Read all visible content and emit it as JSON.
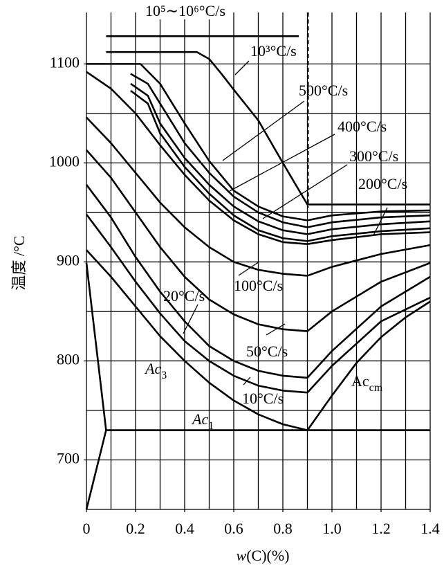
{
  "chart_data": {
    "type": "line",
    "x_label": "w(C)(%)",
    "y_label": "温度 /°C",
    "xlim": [
      0,
      1.4
    ],
    "ylim": [
      650,
      1152
    ],
    "xticks": [
      0,
      0.2,
      0.4,
      0.6,
      0.8,
      {
        "value": 1,
        "label": "1.0"
      },
      1.2,
      1.4
    ],
    "yticks": [
      700,
      800,
      900,
      1000,
      1100
    ],
    "x_gridlines": [
      0.1,
      0.2,
      0.3,
      0.4,
      0.5,
      0.6,
      0.7,
      0.8,
      0.9,
      1,
      1.1,
      1.2,
      1.3,
      1.4
    ],
    "y_gridlines": [
      700,
      750,
      800,
      850,
      900,
      950,
      1000,
      1050,
      1100
    ],
    "grid": true,
    "color": "#000000",
    "series": [
      {
        "name": "10⁵∼10⁶°C/s",
        "x": [
          0.08,
          0.865
        ],
        "values": [
          1128,
          1128
        ]
      },
      {
        "name": "10³°C/s",
        "x": [
          0.08,
          0.45,
          0.5,
          0.55,
          0.6,
          0.7,
          0.8,
          0.9,
          1.4
        ],
        "values": [
          1112,
          1112,
          1105,
          1090,
          1074,
          1043,
          1000,
          958,
          958
        ]
      },
      {
        "name": "500°C/s",
        "x": [
          0,
          0.22,
          0.3,
          0.4,
          0.5,
          0.6,
          0.7,
          0.8,
          0.9,
          1,
          1.2,
          1.4
        ],
        "values": [
          1100,
          1100,
          1080,
          1040,
          1002,
          972,
          956,
          946,
          942,
          947,
          951,
          952
        ]
      },
      {
        "name": "400°C/s",
        "x": [
          0.18,
          0.25,
          0.3,
          0.4,
          0.5,
          0.6,
          0.7,
          0.8,
          0.9,
          1,
          1.2,
          1.4
        ],
        "values": [
          1090,
          1080,
          1060,
          1020,
          990,
          966,
          950,
          940,
          935,
          940,
          945,
          947
        ]
      },
      {
        "name": "300°C/s",
        "x": [
          0.18,
          0.25,
          0.3,
          0.4,
          0.5,
          0.6,
          0.7,
          0.8,
          0.9,
          1,
          1.2,
          1.4
        ],
        "values": [
          1080,
          1068,
          1040,
          1005,
          978,
          956,
          941,
          932,
          928,
          933,
          938,
          941
        ]
      },
      {
        "name": "200°C/s",
        "x": [
          0.18,
          0.25,
          0.3,
          0.4,
          0.5,
          0.6,
          0.7,
          0.8,
          0.9,
          1,
          1.2,
          1.4
        ],
        "values": [
          1073,
          1060,
          1030,
          996,
          969,
          947,
          932,
          924,
          921,
          926,
          931,
          934
        ]
      },
      {
        "x": [
          0,
          0.1,
          0.2,
          0.3,
          0.4,
          0.5,
          0.6,
          0.7,
          0.8,
          0.9,
          1,
          1.2,
          1.4
        ],
        "values": [
          1092,
          1075,
          1050,
          1018,
          988,
          962,
          942,
          928,
          920,
          918,
          922,
          928,
          930
        ]
      },
      {
        "name": "100°C/s",
        "x": [
          0,
          0.1,
          0.2,
          0.3,
          0.4,
          0.5,
          0.6,
          0.7,
          0.8,
          0.9,
          1,
          1.2,
          1.4
        ],
        "values": [
          1046,
          1020,
          990,
          960,
          935,
          915,
          900,
          892,
          888,
          886,
          895,
          908,
          917
        ]
      },
      {
        "name": "50°C/s",
        "x": [
          0,
          0.1,
          0.2,
          0.3,
          0.4,
          0.5,
          0.6,
          0.7,
          0.8,
          0.9,
          1,
          1.2,
          1.4
        ],
        "values": [
          1013,
          985,
          950,
          915,
          885,
          862,
          847,
          837,
          832,
          830,
          850,
          880,
          899
        ]
      },
      {
        "name": "20°C/s",
        "x": [
          0,
          0.1,
          0.2,
          0.3,
          0.4,
          0.5,
          0.6,
          0.7,
          0.8,
          0.9,
          1,
          1.2,
          1.4
        ],
        "values": [
          978,
          945,
          905,
          870,
          840,
          815,
          800,
          790,
          785,
          783,
          810,
          855,
          885
        ]
      },
      {
        "name": "10°C/s",
        "x": [
          0,
          0.1,
          0.2,
          0.3,
          0.4,
          0.5,
          0.6,
          0.7,
          0.8,
          0.9,
          1,
          1.2,
          1.4
        ],
        "values": [
          948,
          915,
          880,
          848,
          820,
          800,
          785,
          775,
          770,
          768,
          795,
          840,
          864
        ]
      },
      {
        "name": "Ac3",
        "x": [
          0,
          0.1,
          0.2,
          0.3,
          0.4,
          0.5,
          0.6,
          0.7,
          0.8,
          0.9
        ],
        "values": [
          912,
          885,
          855,
          825,
          800,
          778,
          760,
          746,
          736,
          730
        ]
      },
      {
        "x": [
          0,
          0.08,
          0
        ],
        "values": [
          899,
          730,
          650
        ]
      },
      {
        "name": "Ac1",
        "x": [
          0.08,
          1.4
        ],
        "values": [
          730,
          730
        ]
      },
      {
        "name": "Accm",
        "x": [
          0.9,
          1,
          1.1,
          1.2,
          1.3,
          1.4
        ],
        "values": [
          730,
          765,
          798,
          824,
          844,
          860
        ]
      }
    ]
  }
}
